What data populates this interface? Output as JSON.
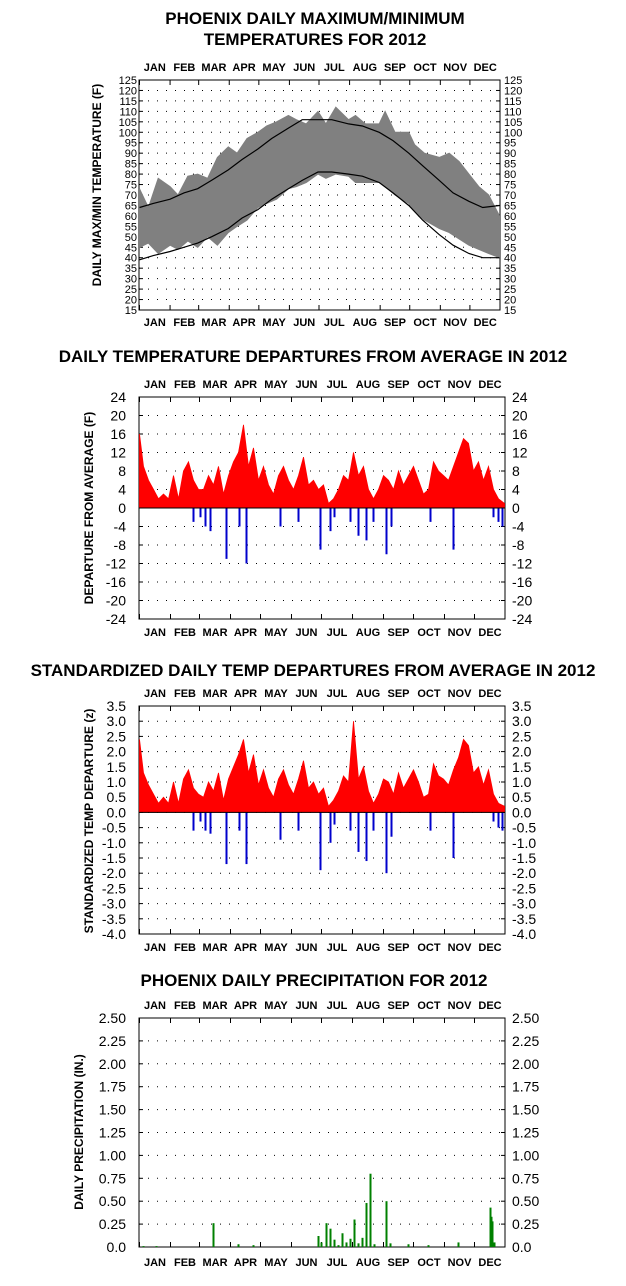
{
  "months": [
    "JAN",
    "FEB",
    "MAR",
    "APR",
    "MAY",
    "JUN",
    "JUL",
    "AUG",
    "SEP",
    "OCT",
    "NOV",
    "DEC"
  ],
  "colors": {
    "observed_range": "#808080",
    "normals": "#000000",
    "positive": "#ff0000",
    "negative": "#0000cc",
    "precip": "#008000",
    "grid": "#000000"
  },
  "chart_data": [
    {
      "id": "maxmin",
      "type": "area",
      "title_lines": [
        "PHOENIX DAILY MAXIMUM/MINIMUM",
        "TEMPERATURES FOR 2012"
      ],
      "ylabel": "DAILY MAX/MIN TEMPERATURE (F)",
      "ylim": [
        15,
        125
      ],
      "yticks": [
        "15",
        "20",
        "25",
        "30",
        "35",
        "40",
        "45",
        "50",
        "55",
        "60",
        "65",
        "70",
        "75",
        "80",
        "85",
        "90",
        "95",
        "100",
        "105",
        "110",
        "115",
        "120",
        "125"
      ],
      "x_days": 366,
      "series": [
        {
          "key": "normal_high",
          "x": [
            1,
            15,
            32,
            46,
            60,
            74,
            91,
            105,
            121,
            135,
            152,
            166,
            182,
            196,
            213,
            227,
            244,
            258,
            274,
            288,
            305,
            319,
            335,
            349,
            366
          ],
          "y": [
            64,
            66,
            68,
            71,
            73,
            77,
            82,
            87,
            92,
            97,
            102,
            106,
            106,
            106,
            104,
            103,
            100,
            96,
            90,
            84,
            77,
            71,
            67,
            64,
            65
          ]
        },
        {
          "key": "normal_low",
          "x": [
            1,
            15,
            32,
            46,
            60,
            74,
            91,
            105,
            121,
            135,
            152,
            166,
            182,
            196,
            213,
            227,
            244,
            258,
            274,
            288,
            305,
            319,
            335,
            349,
            366
          ],
          "y": [
            39,
            41,
            43,
            45,
            47,
            50,
            54,
            59,
            63,
            68,
            73,
            77,
            81,
            81,
            80,
            79,
            76,
            71,
            65,
            58,
            51,
            46,
            42,
            40,
            40
          ]
        },
        {
          "key": "observed_high",
          "x": [
            1,
            10,
            20,
            32,
            40,
            50,
            60,
            70,
            80,
            91,
            100,
            110,
            121,
            130,
            140,
            152,
            160,
            170,
            182,
            190,
            200,
            213,
            220,
            230,
            244,
            250,
            260,
            274,
            280,
            290,
            305,
            315,
            325,
            335,
            345,
            355,
            366
          ],
          "y": [
            73,
            64,
            78,
            74,
            70,
            79,
            80,
            78,
            88,
            93,
            90,
            97,
            100,
            103,
            105,
            108,
            106,
            104,
            110,
            104,
            112,
            106,
            108,
            104,
            104,
            110,
            100,
            100,
            94,
            90,
            88,
            90,
            86,
            80,
            74,
            70,
            60
          ]
        },
        {
          "key": "observed_low",
          "x": [
            1,
            10,
            20,
            32,
            40,
            50,
            60,
            70,
            80,
            91,
            100,
            110,
            121,
            130,
            140,
            152,
            160,
            170,
            182,
            190,
            200,
            213,
            220,
            230,
            244,
            250,
            260,
            274,
            280,
            290,
            305,
            315,
            325,
            335,
            345,
            355,
            366
          ],
          "y": [
            45,
            47,
            42,
            46,
            44,
            48,
            45,
            50,
            46,
            52,
            55,
            58,
            64,
            66,
            68,
            73,
            74,
            76,
            80,
            78,
            80,
            79,
            76,
            76,
            76,
            74,
            70,
            66,
            62,
            58,
            54,
            52,
            49,
            46,
            44,
            42,
            40
          ]
        }
      ]
    },
    {
      "id": "departures",
      "type": "bar",
      "title": "DAILY TEMPERATURE DEPARTURES FROM AVERAGE IN 2012",
      "ylabel": "DEPARTURE FROM AVERAGE (F)",
      "ylim": [
        -24,
        24
      ],
      "yticks": [
        "-24",
        "-20",
        "-16",
        "-12",
        "-8",
        "-4",
        "0",
        "4",
        "8",
        "12",
        "16",
        "20",
        "24"
      ],
      "x_days": 366,
      "series": [
        {
          "key": "positive",
          "x": [
            1,
            5,
            10,
            15,
            20,
            25,
            30,
            35,
            40,
            45,
            50,
            55,
            60,
            65,
            70,
            75,
            80,
            85,
            90,
            95,
            100,
            105,
            110,
            115,
            120,
            125,
            130,
            135,
            140,
            145,
            150,
            155,
            160,
            165,
            170,
            175,
            180,
            185,
            190,
            195,
            200,
            205,
            210,
            215,
            220,
            225,
            230,
            235,
            240,
            245,
            250,
            255,
            260,
            265,
            270,
            275,
            280,
            285,
            290,
            295,
            300,
            305,
            310,
            315,
            320,
            325,
            330,
            335,
            340,
            345,
            350,
            355,
            360,
            366
          ],
          "y": [
            16,
            9,
            6,
            4,
            2,
            3,
            2,
            7,
            2,
            8,
            10,
            6,
            4,
            4,
            7,
            5,
            9,
            3,
            7,
            10,
            12,
            18,
            9,
            13,
            6,
            9,
            5,
            3,
            7,
            9,
            6,
            4,
            7,
            11,
            5,
            6,
            4,
            5,
            1,
            2,
            4,
            7,
            6,
            12,
            7,
            9,
            4,
            2,
            4,
            7,
            6,
            4,
            8,
            5,
            7,
            9,
            6,
            3,
            4,
            10,
            8,
            7,
            6,
            9,
            12,
            15,
            14,
            8,
            10,
            6,
            9,
            4,
            2,
            1
          ]
        },
        {
          "key": "negative",
          "x": [
            55,
            62,
            67,
            72,
            88,
            101,
            108,
            142,
            160,
            182,
            192,
            196,
            212,
            220,
            228,
            235,
            248,
            253,
            292,
            315,
            355,
            360,
            364
          ],
          "y": [
            -3,
            -2,
            -4,
            -5,
            -11,
            -4,
            -12,
            -4,
            -3,
            -9,
            -5,
            -2,
            -3,
            -6,
            -7,
            -3,
            -10,
            -4,
            -3,
            -9,
            -2,
            -3,
            -4
          ]
        }
      ]
    },
    {
      "id": "standardized",
      "type": "bar",
      "title": "STANDARDIZED DAILY TEMP DEPARTURES FROM AVERAGE IN 2012",
      "ylabel": "STANDARDIZED TEMP DEPARTURE (z)",
      "ylim": [
        -4.0,
        3.5
      ],
      "yticks": [
        "-4.0",
        "-3.5",
        "-3.0",
        "-2.5",
        "-2.0",
        "-1.5",
        "-1.0",
        "-0.5",
        "0.0",
        "0.5",
        "1.0",
        "1.5",
        "2.0",
        "2.5",
        "3.0",
        "3.5"
      ],
      "x_days": 366,
      "series": [
        {
          "key": "positive",
          "x": [
            1,
            5,
            10,
            15,
            20,
            25,
            30,
            35,
            40,
            45,
            50,
            55,
            60,
            65,
            70,
            75,
            80,
            85,
            90,
            95,
            100,
            105,
            110,
            115,
            120,
            125,
            130,
            135,
            140,
            145,
            150,
            155,
            160,
            165,
            170,
            175,
            180,
            185,
            190,
            195,
            200,
            205,
            210,
            215,
            220,
            225,
            230,
            235,
            240,
            245,
            250,
            255,
            260,
            265,
            270,
            275,
            280,
            285,
            290,
            295,
            300,
            305,
            310,
            315,
            320,
            325,
            330,
            335,
            340,
            345,
            350,
            355,
            360,
            366
          ],
          "y": [
            2.4,
            1.3,
            0.9,
            0.6,
            0.3,
            0.5,
            0.3,
            1.0,
            0.3,
            1.1,
            1.4,
            0.8,
            0.6,
            0.5,
            1.0,
            0.7,
            1.3,
            0.4,
            1.1,
            1.5,
            1.9,
            2.4,
            1.3,
            1.9,
            0.9,
            1.4,
            0.8,
            0.5,
            1.1,
            1.4,
            0.9,
            0.6,
            1.1,
            1.7,
            0.8,
            1.0,
            0.6,
            0.8,
            0.2,
            0.4,
            0.7,
            1.2,
            1.0,
            3.0,
            1.1,
            1.5,
            0.7,
            0.3,
            0.6,
            1.1,
            1.0,
            0.6,
            1.3,
            0.8,
            1.1,
            1.4,
            1.0,
            0.5,
            0.6,
            1.6,
            1.2,
            1.1,
            0.9,
            1.4,
            1.8,
            2.4,
            2.2,
            1.3,
            1.5,
            0.9,
            1.4,
            0.6,
            0.3,
            0.2
          ]
        },
        {
          "key": "negative",
          "x": [
            55,
            62,
            67,
            72,
            88,
            101,
            108,
            142,
            160,
            182,
            192,
            196,
            212,
            220,
            228,
            235,
            248,
            253,
            292,
            315,
            355,
            360,
            364
          ],
          "y": [
            -0.6,
            -0.3,
            -0.6,
            -0.7,
            -1.7,
            -0.6,
            -1.7,
            -0.9,
            -0.6,
            -1.9,
            -1.0,
            -0.4,
            -0.6,
            -1.3,
            -1.6,
            -0.6,
            -2.0,
            -0.8,
            -0.6,
            -1.5,
            -0.3,
            -0.5,
            -0.6
          ]
        }
      ]
    },
    {
      "id": "precip",
      "type": "bar",
      "title": "PHOENIX DAILY PRECIPITATION FOR 2012",
      "ylabel": "DAILY PRECIPITATION (IN.)",
      "ylim": [
        0.0,
        2.5
      ],
      "yticks": [
        "0.0",
        "0.25",
        "0.50",
        "0.75",
        "1.00",
        "1.25",
        "1.50",
        "1.75",
        "2.00",
        "2.25",
        "2.50"
      ],
      "x_days": 366,
      "series": [
        {
          "key": "precip",
          "x": [
            5,
            18,
            75,
            100,
            115,
            180,
            183,
            188,
            192,
            196,
            200,
            204,
            208,
            212,
            216,
            220,
            224,
            228,
            232,
            236,
            248,
            252,
            270,
            290,
            320,
            352,
            353,
            354,
            356
          ],
          "y": [
            0.01,
            0.01,
            0.26,
            0.03,
            0.02,
            0.12,
            0.05,
            0.26,
            0.2,
            0.08,
            0.02,
            0.15,
            0.05,
            0.09,
            0.3,
            0.04,
            0.1,
            0.48,
            0.8,
            0.03,
            0.5,
            0.04,
            0.03,
            0.02,
            0.05,
            0.43,
            0.33,
            0.28,
            0.05
          ]
        }
      ]
    }
  ]
}
